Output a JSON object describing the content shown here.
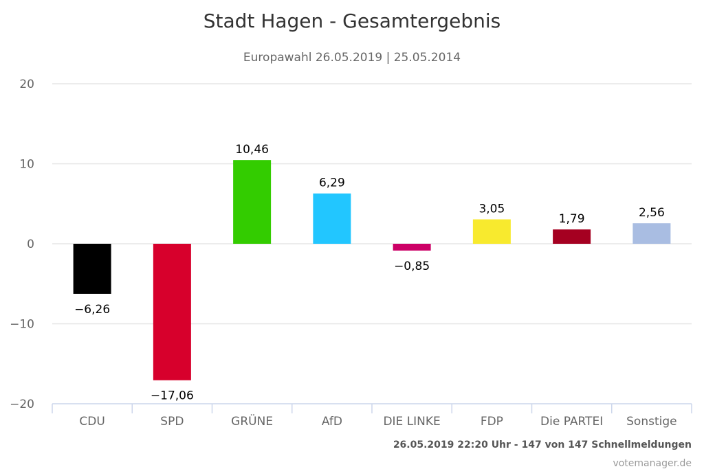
{
  "chart_data": {
    "type": "bar",
    "title": "Stadt Hagen - Gesamtergebnis",
    "subtitle": "Europawahl 26.05.2019 | 25.05.2014",
    "xlabel": "",
    "ylabel": "",
    "ylim": [
      -20,
      20
    ],
    "yticks": [
      20,
      10,
      0,
      -10,
      -20
    ],
    "ytick_labels": [
      "20",
      "10",
      "0",
      "−10",
      "−20"
    ],
    "grid": true,
    "legend": "none",
    "categories": [
      "CDU",
      "SPD",
      "GRÜNE",
      "AfD",
      "DIE LINKE",
      "FDP",
      "Die PARTEI",
      "Sonstige"
    ],
    "values": [
      -6.26,
      -17.06,
      10.46,
      6.29,
      -0.85,
      3.05,
      1.79,
      2.56
    ],
    "value_labels": [
      "−6,26",
      "−17,06",
      "10,46",
      "6,29",
      "−0,85",
      "3,05",
      "1,79",
      "2,56"
    ],
    "colors": [
      "#000000",
      "#d7002c",
      "#33cc00",
      "#22c6ff",
      "#cc0066",
      "#f8ea2e",
      "#a50021",
      "#a9bde2"
    ]
  },
  "footer": {
    "status": "26.05.2019 22:20 Uhr - 147 von 147 Schnellmeldungen",
    "credit": "votemanager.de"
  }
}
